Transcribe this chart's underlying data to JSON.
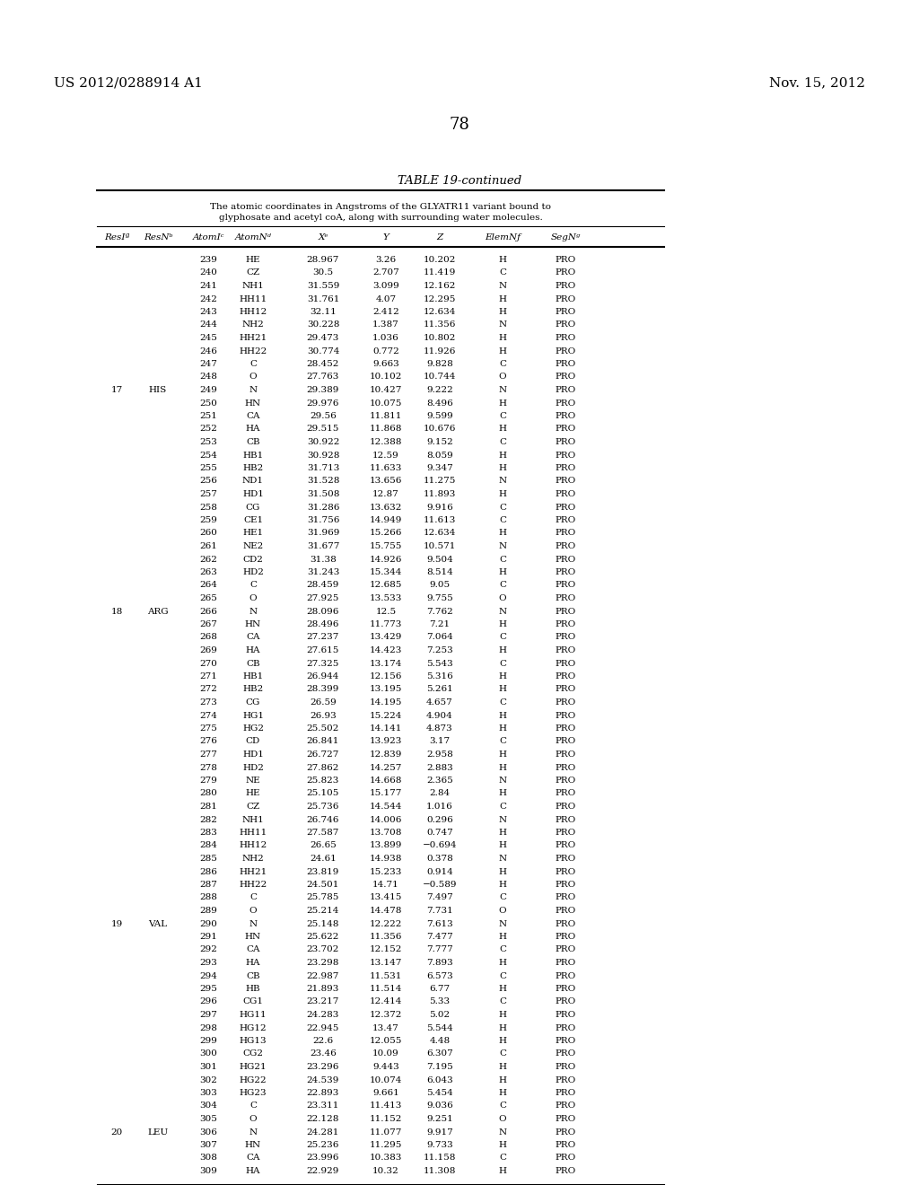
{
  "header_left": "US 2012/0288914 A1",
  "header_right": "Nov. 15, 2012",
  "page_number": "78",
  "table_title": "TABLE 19-continued",
  "table_subtitle": "The atomic coordinates in Angstroms of the GLYATR11 variant bound to\nglyphosate and acetyl coA, along with surrounding water molecules.",
  "col_headers": [
    "ResIª",
    "ResNᵇ",
    "AtomIᶜ",
    "AtomNᵈ",
    "Xᵉ",
    "Y",
    "Z",
    "ElemNƒ",
    "SegNᵍ"
  ],
  "rows": [
    [
      "",
      "",
      "239",
      "HE",
      "28.967",
      "3.26",
      "10.202",
      "H",
      "PRO"
    ],
    [
      "",
      "",
      "240",
      "CZ",
      "30.5",
      "2.707",
      "11.419",
      "C",
      "PRO"
    ],
    [
      "",
      "",
      "241",
      "NH1",
      "31.559",
      "3.099",
      "12.162",
      "N",
      "PRO"
    ],
    [
      "",
      "",
      "242",
      "HH11",
      "31.761",
      "4.07",
      "12.295",
      "H",
      "PRO"
    ],
    [
      "",
      "",
      "243",
      "HH12",
      "32.11",
      "2.412",
      "12.634",
      "H",
      "PRO"
    ],
    [
      "",
      "",
      "244",
      "NH2",
      "30.228",
      "1.387",
      "11.356",
      "N",
      "PRO"
    ],
    [
      "",
      "",
      "245",
      "HH21",
      "29.473",
      "1.036",
      "10.802",
      "H",
      "PRO"
    ],
    [
      "",
      "",
      "246",
      "HH22",
      "30.774",
      "0.772",
      "11.926",
      "H",
      "PRO"
    ],
    [
      "",
      "",
      "247",
      "C",
      "28.452",
      "9.663",
      "9.828",
      "C",
      "PRO"
    ],
    [
      "",
      "",
      "248",
      "O",
      "27.763",
      "10.102",
      "10.744",
      "O",
      "PRO"
    ],
    [
      "17",
      "HIS",
      "249",
      "N",
      "29.389",
      "10.427",
      "9.222",
      "N",
      "PRO"
    ],
    [
      "",
      "",
      "250",
      "HN",
      "29.976",
      "10.075",
      "8.496",
      "H",
      "PRO"
    ],
    [
      "",
      "",
      "251",
      "CA",
      "29.56",
      "11.811",
      "9.599",
      "C",
      "PRO"
    ],
    [
      "",
      "",
      "252",
      "HA",
      "29.515",
      "11.868",
      "10.676",
      "H",
      "PRO"
    ],
    [
      "",
      "",
      "253",
      "CB",
      "30.922",
      "12.388",
      "9.152",
      "C",
      "PRO"
    ],
    [
      "",
      "",
      "254",
      "HB1",
      "30.928",
      "12.59",
      "8.059",
      "H",
      "PRO"
    ],
    [
      "",
      "",
      "255",
      "HB2",
      "31.713",
      "11.633",
      "9.347",
      "H",
      "PRO"
    ],
    [
      "",
      "",
      "256",
      "ND1",
      "31.528",
      "13.656",
      "11.275",
      "N",
      "PRO"
    ],
    [
      "",
      "",
      "257",
      "HD1",
      "31.508",
      "12.87",
      "11.893",
      "H",
      "PRO"
    ],
    [
      "",
      "",
      "258",
      "CG",
      "31.286",
      "13.632",
      "9.916",
      "C",
      "PRO"
    ],
    [
      "",
      "",
      "259",
      "CE1",
      "31.756",
      "14.949",
      "11.613",
      "C",
      "PRO"
    ],
    [
      "",
      "",
      "260",
      "HE1",
      "31.969",
      "15.266",
      "12.634",
      "H",
      "PRO"
    ],
    [
      "",
      "",
      "261",
      "NE2",
      "31.677",
      "15.755",
      "10.571",
      "N",
      "PRO"
    ],
    [
      "",
      "",
      "262",
      "CD2",
      "31.38",
      "14.926",
      "9.504",
      "C",
      "PRO"
    ],
    [
      "",
      "",
      "263",
      "HD2",
      "31.243",
      "15.344",
      "8.514",
      "H",
      "PRO"
    ],
    [
      "",
      "",
      "264",
      "C",
      "28.459",
      "12.685",
      "9.05",
      "C",
      "PRO"
    ],
    [
      "",
      "",
      "265",
      "O",
      "27.925",
      "13.533",
      "9.755",
      "O",
      "PRO"
    ],
    [
      "18",
      "ARG",
      "266",
      "N",
      "28.096",
      "12.5",
      "7.762",
      "N",
      "PRO"
    ],
    [
      "",
      "",
      "267",
      "HN",
      "28.496",
      "11.773",
      "7.21",
      "H",
      "PRO"
    ],
    [
      "",
      "",
      "268",
      "CA",
      "27.237",
      "13.429",
      "7.064",
      "C",
      "PRO"
    ],
    [
      "",
      "",
      "269",
      "HA",
      "27.615",
      "14.423",
      "7.253",
      "H",
      "PRO"
    ],
    [
      "",
      "",
      "270",
      "CB",
      "27.325",
      "13.174",
      "5.543",
      "C",
      "PRO"
    ],
    [
      "",
      "",
      "271",
      "HB1",
      "26.944",
      "12.156",
      "5.316",
      "H",
      "PRO"
    ],
    [
      "",
      "",
      "272",
      "HB2",
      "28.399",
      "13.195",
      "5.261",
      "H",
      "PRO"
    ],
    [
      "",
      "",
      "273",
      "CG",
      "26.59",
      "14.195",
      "4.657",
      "C",
      "PRO"
    ],
    [
      "",
      "",
      "274",
      "HG1",
      "26.93",
      "15.224",
      "4.904",
      "H",
      "PRO"
    ],
    [
      "",
      "",
      "275",
      "HG2",
      "25.502",
      "14.141",
      "4.873",
      "H",
      "PRO"
    ],
    [
      "",
      "",
      "276",
      "CD",
      "26.841",
      "13.923",
      "3.17",
      "C",
      "PRO"
    ],
    [
      "",
      "",
      "277",
      "HD1",
      "26.727",
      "12.839",
      "2.958",
      "H",
      "PRO"
    ],
    [
      "",
      "",
      "278",
      "HD2",
      "27.862",
      "14.257",
      "2.883",
      "H",
      "PRO"
    ],
    [
      "",
      "",
      "279",
      "NE",
      "25.823",
      "14.668",
      "2.365",
      "N",
      "PRO"
    ],
    [
      "",
      "",
      "280",
      "HE",
      "25.105",
      "15.177",
      "2.84",
      "H",
      "PRO"
    ],
    [
      "",
      "",
      "281",
      "CZ",
      "25.736",
      "14.544",
      "1.016",
      "C",
      "PRO"
    ],
    [
      "",
      "",
      "282",
      "NH1",
      "26.746",
      "14.006",
      "0.296",
      "N",
      "PRO"
    ],
    [
      "",
      "",
      "283",
      "HH11",
      "27.587",
      "13.708",
      "0.747",
      "H",
      "PRO"
    ],
    [
      "",
      "",
      "284",
      "HH12",
      "26.65",
      "13.899",
      "−0.694",
      "H",
      "PRO"
    ],
    [
      "",
      "",
      "285",
      "NH2",
      "24.61",
      "14.938",
      "0.378",
      "N",
      "PRO"
    ],
    [
      "",
      "",
      "286",
      "HH21",
      "23.819",
      "15.233",
      "0.914",
      "H",
      "PRO"
    ],
    [
      "",
      "",
      "287",
      "HH22",
      "24.501",
      "14.71",
      "−0.589",
      "H",
      "PRO"
    ],
    [
      "",
      "",
      "288",
      "C",
      "25.785",
      "13.415",
      "7.497",
      "C",
      "PRO"
    ],
    [
      "",
      "",
      "289",
      "O",
      "25.214",
      "14.478",
      "7.731",
      "O",
      "PRO"
    ],
    [
      "19",
      "VAL",
      "290",
      "N",
      "25.148",
      "12.222",
      "7.613",
      "N",
      "PRO"
    ],
    [
      "",
      "",
      "291",
      "HN",
      "25.622",
      "11.356",
      "7.477",
      "H",
      "PRO"
    ],
    [
      "",
      "",
      "292",
      "CA",
      "23.702",
      "12.152",
      "7.777",
      "C",
      "PRO"
    ],
    [
      "",
      "",
      "293",
      "HA",
      "23.298",
      "13.147",
      "7.893",
      "H",
      "PRO"
    ],
    [
      "",
      "",
      "294",
      "CB",
      "22.987",
      "11.531",
      "6.573",
      "C",
      "PRO"
    ],
    [
      "",
      "",
      "295",
      "HB",
      "21.893",
      "11.514",
      "6.77",
      "H",
      "PRO"
    ],
    [
      "",
      "",
      "296",
      "CG1",
      "23.217",
      "12.414",
      "5.33",
      "C",
      "PRO"
    ],
    [
      "",
      "",
      "297",
      "HG11",
      "24.283",
      "12.372",
      "5.02",
      "H",
      "PRO"
    ],
    [
      "",
      "",
      "298",
      "HG12",
      "22.945",
      "13.47",
      "5.544",
      "H",
      "PRO"
    ],
    [
      "",
      "",
      "299",
      "HG13",
      "22.6",
      "12.055",
      "4.48",
      "H",
      "PRO"
    ],
    [
      "",
      "",
      "300",
      "CG2",
      "23.46",
      "10.09",
      "6.307",
      "C",
      "PRO"
    ],
    [
      "",
      "",
      "301",
      "HG21",
      "23.296",
      "9.443",
      "7.195",
      "H",
      "PRO"
    ],
    [
      "",
      "",
      "302",
      "HG22",
      "24.539",
      "10.074",
      "6.043",
      "H",
      "PRO"
    ],
    [
      "",
      "",
      "303",
      "HG23",
      "22.893",
      "9.661",
      "5.454",
      "H",
      "PRO"
    ],
    [
      "",
      "",
      "304",
      "C",
      "23.311",
      "11.413",
      "9.036",
      "C",
      "PRO"
    ],
    [
      "",
      "",
      "305",
      "O",
      "22.128",
      "11.152",
      "9.251",
      "O",
      "PRO"
    ],
    [
      "20",
      "LEU",
      "306",
      "N",
      "24.281",
      "11.077",
      "9.917",
      "N",
      "PRO"
    ],
    [
      "",
      "",
      "307",
      "HN",
      "25.236",
      "11.295",
      "9.733",
      "H",
      "PRO"
    ],
    [
      "",
      "",
      "308",
      "CA",
      "23.996",
      "10.383",
      "11.158",
      "C",
      "PRO"
    ],
    [
      "",
      "",
      "309",
      "HA",
      "22.929",
      "10.32",
      "11.308",
      "H",
      "PRO"
    ]
  ],
  "bg_color": "#ffffff",
  "text_color": "#000000",
  "font_size": 7.5,
  "title_font_size": 9.5
}
